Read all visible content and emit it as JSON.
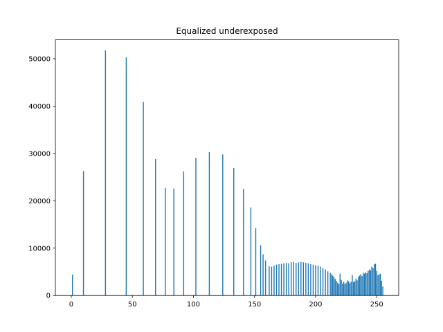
{
  "chart_data": {
    "type": "bar",
    "title": "Equalized underexposed",
    "xlabel": "",
    "ylabel": "",
    "xlim": [
      -13,
      268
    ],
    "ylim": [
      0,
      54000
    ],
    "bar_width": 0.8,
    "bar_color": "#1f77b4",
    "x_ticks": [
      {
        "value": 0,
        "label": "0"
      },
      {
        "value": 50,
        "label": "50"
      },
      {
        "value": 100,
        "label": "100"
      },
      {
        "value": 150,
        "label": "150"
      },
      {
        "value": 200,
        "label": "200"
      },
      {
        "value": 250,
        "label": "250"
      }
    ],
    "y_ticks": [
      {
        "value": 0,
        "label": "0"
      },
      {
        "value": 10000,
        "label": "10000"
      },
      {
        "value": 20000,
        "label": "20000"
      },
      {
        "value": 30000,
        "label": "30000"
      },
      {
        "value": 40000,
        "label": "40000"
      },
      {
        "value": 50000,
        "label": "50000"
      }
    ],
    "x": [
      1,
      10,
      28,
      45,
      59,
      69,
      77,
      84,
      92,
      102,
      113,
      124,
      133,
      141,
      147,
      151,
      155,
      157,
      159,
      162,
      164,
      166,
      168,
      170,
      172,
      174,
      176,
      178,
      180,
      182,
      184,
      186,
      188,
      190,
      192,
      194,
      196,
      198,
      200,
      202,
      204,
      206,
      208,
      210,
      212,
      213,
      214,
      215,
      216,
      217,
      218,
      219,
      220,
      221,
      222,
      223,
      224,
      225,
      226,
      227,
      228,
      229,
      230,
      231,
      232,
      233,
      234,
      235,
      236,
      237,
      238,
      239,
      240,
      241,
      242,
      243,
      244,
      245,
      246,
      247,
      248,
      249,
      250,
      251,
      252,
      253,
      254,
      255
    ],
    "values": [
      4400,
      26300,
      51800,
      50300,
      40900,
      28800,
      22700,
      22600,
      26200,
      29100,
      30300,
      29800,
      26900,
      22500,
      18600,
      14200,
      10600,
      8700,
      7400,
      6200,
      6100,
      6300,
      6500,
      6600,
      6700,
      6800,
      6900,
      6800,
      7000,
      7100,
      6900,
      7000,
      7100,
      7000,
      6900,
      6800,
      6600,
      6500,
      6400,
      6300,
      6100,
      5800,
      5500,
      5100,
      4800,
      4500,
      4200,
      3900,
      3500,
      3100,
      2700,
      2400,
      4600,
      3300,
      2500,
      2900,
      2400,
      2700,
      3200,
      3000,
      2600,
      2900,
      4300,
      2800,
      3000,
      3600,
      3200,
      3900,
      4200,
      4500,
      4100,
      4800,
      4600,
      4900,
      4700,
      5200,
      5500,
      5300,
      6100,
      5800,
      6600,
      6700,
      5200,
      4300,
      4500,
      4600,
      3100,
      1900
    ]
  }
}
